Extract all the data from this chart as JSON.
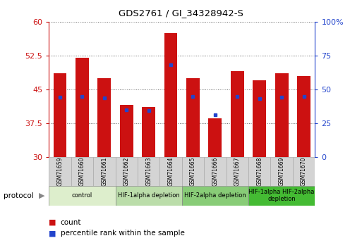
{
  "title": "GDS2761 / GI_34328942-S",
  "samples": [
    "GSM71659",
    "GSM71660",
    "GSM71661",
    "GSM71662",
    "GSM71663",
    "GSM71664",
    "GSM71665",
    "GSM71666",
    "GSM71667",
    "GSM71668",
    "GSM71669",
    "GSM71670"
  ],
  "counts": [
    48.5,
    52.0,
    47.5,
    41.5,
    41.0,
    57.5,
    47.5,
    38.5,
    49.0,
    47.0,
    48.5,
    48.0
  ],
  "percentiles": [
    44.0,
    44.5,
    43.5,
    35.0,
    34.0,
    68.0,
    44.5,
    31.0,
    44.5,
    43.0,
    44.0,
    44.5
  ],
  "ylim": [
    30,
    60
  ],
  "yticks_left": [
    30,
    37.5,
    45,
    52.5,
    60
  ],
  "yticks_right": [
    0,
    25,
    50,
    75,
    100
  ],
  "bar_color": "#cc1111",
  "dot_color": "#2244cc",
  "bar_width": 0.6,
  "groups": [
    {
      "label": "control",
      "start": 0,
      "end": 3,
      "color": "#ddeecc"
    },
    {
      "label": "HIF-1alpha depletion",
      "start": 3,
      "end": 6,
      "color": "#bbddaa"
    },
    {
      "label": "HIF-2alpha depletion",
      "start": 6,
      "end": 9,
      "color": "#88cc77"
    },
    {
      "label": "HIF-1alpha HIF-2alpha\ndepletion",
      "start": 9,
      "end": 12,
      "color": "#44bb33"
    }
  ],
  "protocol_label": "protocol",
  "legend_count": "count",
  "legend_pct": "percentile rank within the sample"
}
